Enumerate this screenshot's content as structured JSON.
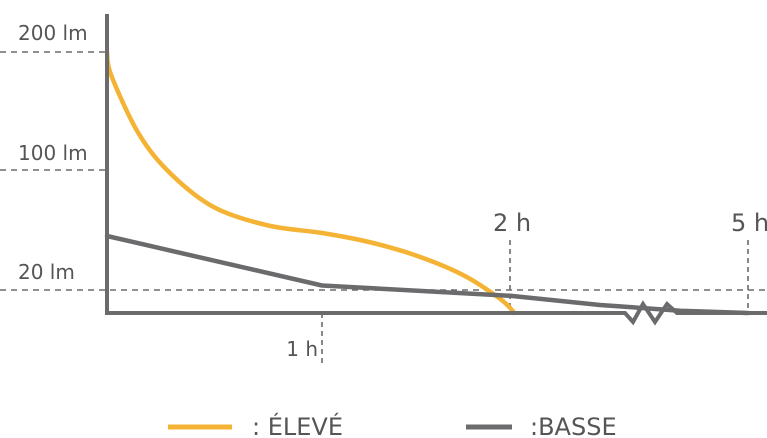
{
  "colors": {
    "eleve": "#F5B335",
    "basse": "#6B6B6D",
    "axis": "#6B6B6D",
    "text": "#555555"
  },
  "chart_data": {
    "type": "line",
    "title": "",
    "xlabel": "",
    "ylabel": "",
    "grid": false,
    "legend_position": "bottom",
    "y_ticks": [
      {
        "label": "200 lm",
        "value": 200
      },
      {
        "label": "100 lm",
        "value": 100
      },
      {
        "label": "20 lm",
        "value": 20
      }
    ],
    "x_ticks": [
      {
        "label": "1 h",
        "hours": 1,
        "position": "below"
      },
      {
        "label": "2 h",
        "hours": 2,
        "position": "above"
      },
      {
        "label": "5 h",
        "hours": 5,
        "position": "above"
      }
    ],
    "axis_break": true,
    "series": [
      {
        "name": ": ÉLEVÉ",
        "color": "#F5B335",
        "points": [
          [
            0,
            200
          ],
          [
            0.02,
            180
          ],
          [
            0.15,
            130
          ],
          [
            0.3,
            97
          ],
          [
            0.5,
            75
          ],
          [
            0.75,
            63
          ],
          [
            1.0,
            58
          ],
          [
            1.25,
            52
          ],
          [
            1.5,
            43
          ],
          [
            1.75,
            30
          ],
          [
            1.95,
            12
          ],
          [
            2.05,
            0
          ]
        ]
      },
      {
        "name": ":BASSE",
        "color": "#6B6B6D",
        "points": [
          [
            0,
            56
          ],
          [
            1.0,
            23
          ],
          [
            2.0,
            15
          ],
          [
            3.0,
            7
          ],
          [
            4.0,
            2
          ],
          [
            5.0,
            0
          ]
        ]
      }
    ]
  }
}
